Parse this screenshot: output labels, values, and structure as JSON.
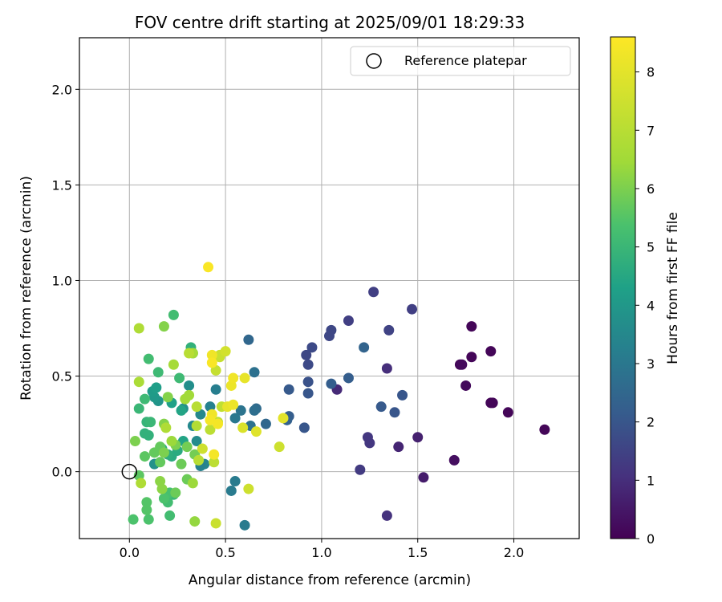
{
  "chart_data": {
    "type": "scatter",
    "title": "FOV centre drift starting at 2025/09/01 18:29:33",
    "xlabel": "Angular distance from reference (arcmin)",
    "ylabel": "Rotation from reference (arcmin)",
    "xlim": [
      -0.26,
      2.34
    ],
    "ylim": [
      -0.35,
      2.27
    ],
    "x_ticks": [
      "0.0",
      "0.5",
      "1.0",
      "1.5",
      "2.0"
    ],
    "y_ticks": [
      "0.0",
      "0.5",
      "1.0",
      "1.5",
      "2.0"
    ],
    "grid": true,
    "legend": {
      "label": "Reference platepar",
      "placement": "top-right"
    },
    "reference_point": {
      "x": 0.0,
      "y": 0.0
    },
    "colorbar": {
      "label": "Hours from first FF file",
      "range": [
        0,
        8.6
      ],
      "ticks": [
        "0",
        "1",
        "2",
        "3",
        "4",
        "5",
        "6",
        "7",
        "8"
      ],
      "colormap": "viridis"
    },
    "points": [
      {
        "x": 2.16,
        "y": 0.22,
        "c": 0.1
      },
      {
        "x": 1.97,
        "y": 0.31,
        "c": 0.1
      },
      {
        "x": 1.88,
        "y": 0.36,
        "c": 0.1
      },
      {
        "x": 1.89,
        "y": 0.36,
        "c": 0.1
      },
      {
        "x": 1.88,
        "y": 0.63,
        "c": 0.1
      },
      {
        "x": 1.78,
        "y": 0.76,
        "c": 0.1
      },
      {
        "x": 1.78,
        "y": 0.6,
        "c": 0.1
      },
      {
        "x": 1.72,
        "y": 0.56,
        "c": 0.1
      },
      {
        "x": 1.73,
        "y": 0.56,
        "c": 0.2
      },
      {
        "x": 1.75,
        "y": 0.45,
        "c": 0.2
      },
      {
        "x": 1.69,
        "y": 0.06,
        "c": 0.3
      },
      {
        "x": 1.53,
        "y": -0.03,
        "c": 0.6
      },
      {
        "x": 1.5,
        "y": 0.18,
        "c": 0.7
      },
      {
        "x": 1.4,
        "y": 0.13,
        "c": 0.8
      },
      {
        "x": 1.34,
        "y": -0.23,
        "c": 1.1
      },
      {
        "x": 1.34,
        "y": 0.54,
        "c": 1.0
      },
      {
        "x": 1.25,
        "y": 0.15,
        "c": 1.2
      },
      {
        "x": 1.24,
        "y": 0.18,
        "c": 1.2
      },
      {
        "x": 1.2,
        "y": 0.01,
        "c": 1.3
      },
      {
        "x": 1.08,
        "y": 0.43,
        "c": 0.9
      },
      {
        "x": 1.27,
        "y": 0.94,
        "c": 1.4
      },
      {
        "x": 1.47,
        "y": 0.85,
        "c": 1.4
      },
      {
        "x": 1.14,
        "y": 0.79,
        "c": 1.4
      },
      {
        "x": 1.35,
        "y": 0.74,
        "c": 1.5
      },
      {
        "x": 1.05,
        "y": 0.74,
        "c": 1.6
      },
      {
        "x": 1.04,
        "y": 0.71,
        "c": 1.6
      },
      {
        "x": 0.95,
        "y": 0.65,
        "c": 1.7
      },
      {
        "x": 0.92,
        "y": 0.61,
        "c": 1.6
      },
      {
        "x": 0.93,
        "y": 0.56,
        "c": 1.7
      },
      {
        "x": 0.93,
        "y": 0.47,
        "c": 1.9
      },
      {
        "x": 0.93,
        "y": 0.41,
        "c": 2.0
      },
      {
        "x": 0.91,
        "y": 0.23,
        "c": 2.0
      },
      {
        "x": 1.42,
        "y": 0.4,
        "c": 2.0
      },
      {
        "x": 1.38,
        "y": 0.31,
        "c": 2.0
      },
      {
        "x": 1.31,
        "y": 0.34,
        "c": 2.1
      },
      {
        "x": 1.14,
        "y": 0.49,
        "c": 2.2
      },
      {
        "x": 1.05,
        "y": 0.46,
        "c": 2.2
      },
      {
        "x": 1.22,
        "y": 0.65,
        "c": 2.4
      },
      {
        "x": 0.83,
        "y": 0.43,
        "c": 2.1
      },
      {
        "x": 0.83,
        "y": 0.29,
        "c": 2.2
      },
      {
        "x": 0.82,
        "y": 0.27,
        "c": 2.3
      },
      {
        "x": 0.71,
        "y": 0.25,
        "c": 2.5
      },
      {
        "x": 0.66,
        "y": 0.33,
        "c": 2.6
      },
      {
        "x": 0.65,
        "y": 0.32,
        "c": 2.7
      },
      {
        "x": 0.65,
        "y": 0.52,
        "c": 2.8
      },
      {
        "x": 0.62,
        "y": 0.69,
        "c": 2.5
      },
      {
        "x": 0.63,
        "y": 0.24,
        "c": 2.8
      },
      {
        "x": 0.58,
        "y": 0.32,
        "c": 2.9
      },
      {
        "x": 0.55,
        "y": 0.28,
        "c": 3.0
      },
      {
        "x": 0.53,
        "y": -0.1,
        "c": 3.1
      },
      {
        "x": 0.55,
        "y": -0.05,
        "c": 3.1
      },
      {
        "x": 0.6,
        "y": -0.28,
        "c": 3.1
      },
      {
        "x": 0.45,
        "y": 0.43,
        "c": 3.2
      },
      {
        "x": 0.42,
        "y": 0.34,
        "c": 3.3
      },
      {
        "x": 0.37,
        "y": 0.3,
        "c": 3.5
      },
      {
        "x": 0.35,
        "y": 0.16,
        "c": 3.6
      },
      {
        "x": 0.39,
        "y": 0.04,
        "c": 3.4
      },
      {
        "x": 0.37,
        "y": 0.03,
        "c": 3.3
      },
      {
        "x": 0.33,
        "y": 0.24,
        "c": 3.5
      },
      {
        "x": 0.31,
        "y": 0.45,
        "c": 3.7
      },
      {
        "x": 0.28,
        "y": 0.33,
        "c": 3.8
      },
      {
        "x": 0.13,
        "y": 0.04,
        "c": 3.8
      },
      {
        "x": 0.15,
        "y": 0.37,
        "c": 3.9
      },
      {
        "x": 0.13,
        "y": 0.39,
        "c": 4.0
      },
      {
        "x": 0.12,
        "y": 0.42,
        "c": 4.1
      },
      {
        "x": 0.14,
        "y": 0.44,
        "c": 4.2
      },
      {
        "x": 0.22,
        "y": 0.36,
        "c": 4.3
      },
      {
        "x": 0.27,
        "y": 0.32,
        "c": 4.4
      },
      {
        "x": 0.28,
        "y": 0.16,
        "c": 4.4
      },
      {
        "x": 0.25,
        "y": 0.11,
        "c": 4.6
      },
      {
        "x": 0.22,
        "y": 0.08,
        "c": 4.6
      },
      {
        "x": 0.2,
        "y": 0.09,
        "c": 4.7
      },
      {
        "x": 0.17,
        "y": 0.12,
        "c": 4.7
      },
      {
        "x": 0.1,
        "y": 0.19,
        "c": 4.8
      },
      {
        "x": 0.08,
        "y": 0.2,
        "c": 4.8
      },
      {
        "x": 0.09,
        "y": 0.26,
        "c": 4.9
      },
      {
        "x": 0.11,
        "y": 0.26,
        "c": 5.0
      },
      {
        "x": 0.05,
        "y": 0.33,
        "c": 5.0
      },
      {
        "x": 0.08,
        "y": 0.38,
        "c": 5.1
      },
      {
        "x": 0.15,
        "y": 0.52,
        "c": 5.1
      },
      {
        "x": 0.1,
        "y": 0.59,
        "c": 5.2
      },
      {
        "x": 0.23,
        "y": 0.82,
        "c": 5.2
      },
      {
        "x": 0.32,
        "y": 0.65,
        "c": 4.8
      },
      {
        "x": 0.33,
        "y": 0.62,
        "c": 5.0
      },
      {
        "x": 0.26,
        "y": 0.49,
        "c": 5.1
      },
      {
        "x": 0.23,
        "y": -0.12,
        "c": 5.0
      },
      {
        "x": 0.2,
        "y": -0.16,
        "c": 5.2
      },
      {
        "x": 0.21,
        "y": -0.23,
        "c": 5.2
      },
      {
        "x": 0.21,
        "y": -0.11,
        "c": 5.3
      },
      {
        "x": 0.18,
        "y": -0.14,
        "c": 5.4
      },
      {
        "x": 0.1,
        "y": -0.25,
        "c": 5.4
      },
      {
        "x": 0.02,
        "y": -0.25,
        "c": 5.4
      },
      {
        "x": 0.09,
        "y": -0.2,
        "c": 5.5
      },
      {
        "x": 0.09,
        "y": -0.16,
        "c": 5.5
      },
      {
        "x": 0.05,
        "y": -0.02,
        "c": 5.6
      },
      {
        "x": 0.08,
        "y": 0.08,
        "c": 5.6
      },
      {
        "x": 0.13,
        "y": 0.1,
        "c": 5.7
      },
      {
        "x": 0.16,
        "y": 0.13,
        "c": 5.7
      },
      {
        "x": 0.16,
        "y": 0.05,
        "c": 5.7
      },
      {
        "x": 0.27,
        "y": 0.04,
        "c": 5.8
      },
      {
        "x": 0.3,
        "y": -0.04,
        "c": 5.8
      },
      {
        "x": 0.24,
        "y": -0.11,
        "c": 5.8
      },
      {
        "x": 0.34,
        "y": 0.09,
        "c": 5.9
      },
      {
        "x": 0.3,
        "y": 0.13,
        "c": 5.9
      },
      {
        "x": 0.24,
        "y": 0.14,
        "c": 6.0
      },
      {
        "x": 0.18,
        "y": 0.1,
        "c": 6.0
      },
      {
        "x": 0.03,
        "y": 0.16,
        "c": 6.0
      },
      {
        "x": 0.18,
        "y": 0.25,
        "c": 6.1
      },
      {
        "x": 0.2,
        "y": 0.39,
        "c": 6.1
      },
      {
        "x": 0.18,
        "y": 0.76,
        "c": 6.1
      },
      {
        "x": 0.16,
        "y": -0.05,
        "c": 6.2
      },
      {
        "x": 0.17,
        "y": -0.09,
        "c": 6.2
      },
      {
        "x": 0.34,
        "y": -0.26,
        "c": 6.3
      },
      {
        "x": 0.33,
        "y": -0.06,
        "c": 6.4
      },
      {
        "x": 0.22,
        "y": 0.16,
        "c": 6.4
      },
      {
        "x": 0.31,
        "y": 0.4,
        "c": 6.5
      },
      {
        "x": 0.29,
        "y": 0.38,
        "c": 6.5
      },
      {
        "x": 0.33,
        "y": 0.62,
        "c": 6.6
      },
      {
        "x": 0.23,
        "y": 0.56,
        "c": 6.6
      },
      {
        "x": 0.05,
        "y": 0.47,
        "c": 6.7
      },
      {
        "x": 0.05,
        "y": 0.75,
        "c": 6.8
      },
      {
        "x": 0.06,
        "y": -0.06,
        "c": 6.8
      },
      {
        "x": 0.19,
        "y": 0.23,
        "c": 6.8
      },
      {
        "x": 0.35,
        "y": 0.24,
        "c": 6.9
      },
      {
        "x": 0.35,
        "y": 0.34,
        "c": 7.0
      },
      {
        "x": 0.31,
        "y": 0.62,
        "c": 7.0
      },
      {
        "x": 0.36,
        "y": 0.06,
        "c": 7.0
      },
      {
        "x": 0.44,
        "y": 0.05,
        "c": 7.1
      },
      {
        "x": 0.42,
        "y": 0.22,
        "c": 7.1
      },
      {
        "x": 0.46,
        "y": 0.26,
        "c": 7.2
      },
      {
        "x": 0.48,
        "y": 0.34,
        "c": 7.2
      },
      {
        "x": 0.45,
        "y": 0.53,
        "c": 7.3
      },
      {
        "x": 0.47,
        "y": 0.6,
        "c": 7.3
      },
      {
        "x": 0.47,
        "y": 0.61,
        "c": 7.4
      },
      {
        "x": 0.45,
        "y": -0.27,
        "c": 7.4
      },
      {
        "x": 0.62,
        "y": -0.09,
        "c": 7.5
      },
      {
        "x": 0.78,
        "y": 0.13,
        "c": 7.5
      },
      {
        "x": 0.38,
        "y": 0.12,
        "c": 7.5
      },
      {
        "x": 0.5,
        "y": 0.63,
        "c": 7.6
      },
      {
        "x": 0.59,
        "y": 0.23,
        "c": 7.8
      },
      {
        "x": 0.66,
        "y": 0.21,
        "c": 7.9
      },
      {
        "x": 0.8,
        "y": 0.28,
        "c": 8.0
      },
      {
        "x": 0.6,
        "y": 0.49,
        "c": 8.1
      },
      {
        "x": 0.51,
        "y": 0.34,
        "c": 8.1
      },
      {
        "x": 0.54,
        "y": 0.35,
        "c": 8.2
      },
      {
        "x": 0.53,
        "y": 0.45,
        "c": 8.2
      },
      {
        "x": 0.54,
        "y": 0.49,
        "c": 8.3
      },
      {
        "x": 0.43,
        "y": 0.3,
        "c": 8.3
      },
      {
        "x": 0.43,
        "y": 0.61,
        "c": 8.3
      },
      {
        "x": 0.46,
        "y": 0.25,
        "c": 8.4
      },
      {
        "x": 0.42,
        "y": 0.27,
        "c": 8.4
      },
      {
        "x": 0.44,
        "y": 0.09,
        "c": 8.4
      },
      {
        "x": 0.43,
        "y": 0.57,
        "c": 8.5
      },
      {
        "x": 0.41,
        "y": 1.07,
        "c": 8.5
      }
    ]
  }
}
